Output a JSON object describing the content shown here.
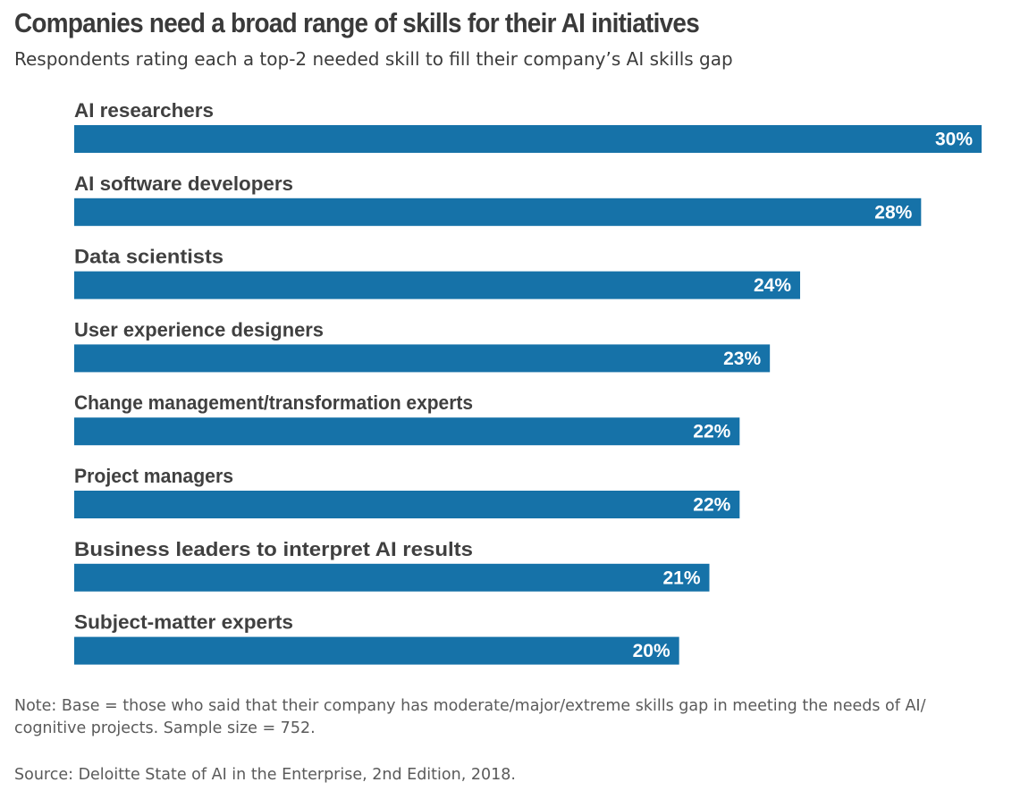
{
  "chart_data": {
    "type": "bar",
    "orientation": "horizontal",
    "title": "Companies need a broad range of skills for their AI initiatives",
    "subtitle": "Respondents rating each a top-2 needed skill to fill their company’s AI skills gap",
    "categories": [
      "AI researchers",
      "AI software developers",
      "Data scientists",
      "User experience designers",
      "Change management/transformation experts",
      "Project managers",
      "Business leaders to interpret AI results",
      "Subject-matter experts"
    ],
    "values": [
      30,
      28,
      24,
      23,
      22,
      22,
      21,
      20
    ],
    "value_labels": [
      "30%",
      "28%",
      "24%",
      "23%",
      "22%",
      "22%",
      "21%",
      "20%"
    ],
    "unit": "%",
    "bar_color": "#1672a8",
    "grid": false,
    "legend": "none"
  },
  "note": "Note: Base = those who said that their company has moderate/major/extreme skills gap in meeting the needs of AI/ cognitive projects. Sample size = 752.",
  "source": "Source: Deloitte State of AI in the Enterprise, 2nd Edition, 2018."
}
